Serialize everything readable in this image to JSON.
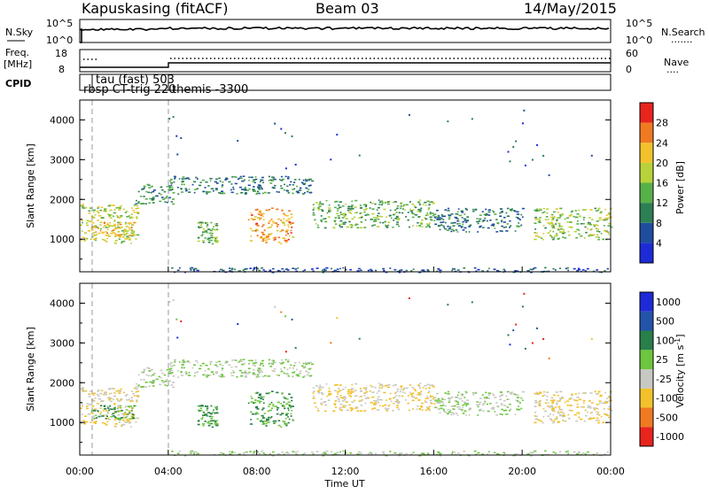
{
  "header": {
    "station": "Kapuskasing (fitACF)",
    "beam": "Beam 03",
    "date": "14/May/2015"
  },
  "noise_panel": {
    "left_label": "N.Sky",
    "left_ticks": [
      "10^5",
      "10^0"
    ],
    "right_ticks": [
      "10^5",
      "10^0"
    ],
    "right_label": "N.Search",
    "legend_marker": "......."
  },
  "freq_panel": {
    "left_label_line1": "Freq.",
    "left_label_line2": "[MHz]",
    "left_ticks": [
      "18",
      "8"
    ],
    "right_ticks": [
      "60",
      "0"
    ],
    "right_label": "Nave",
    "legend_marker": "...."
  },
  "cpid_panel": {
    "label": "CPID",
    "annotations": [
      "tau (fast) 503",
      "rbsp CT-trig 220",
      "themis -3300"
    ]
  },
  "x_axis": {
    "title": "Time UT",
    "ticks": [
      "00:00",
      "04:00",
      "08:00",
      "12:00",
      "16:00",
      "20:00",
      "00:00"
    ]
  },
  "power_panel": {
    "ylabel": "Slant Range [km]",
    "yticks": [
      "1000",
      "2000",
      "3000",
      "4000"
    ],
    "colorbar_label": "Power [dB]",
    "colorbar_ticks": [
      "4",
      "8",
      "12",
      "16",
      "20",
      "24",
      "28"
    ],
    "colors": [
      "#1d2bd6",
      "#1f4d9e",
      "#2e7f55",
      "#58b04a",
      "#b8d23a",
      "#f2c12d",
      "#f07a22",
      "#e8241d"
    ]
  },
  "velocity_panel": {
    "ylabel": "Slant Range [km]",
    "yticks": [
      "1000",
      "2000",
      "3000",
      "4000"
    ],
    "colorbar_label": "Velocity [m s",
    "colorbar_label_sup": "-1",
    "colorbar_label_end": "]",
    "colorbar_ticks": [
      "1000",
      "500",
      "100",
      "25",
      "-25",
      "-100",
      "-500",
      "-1000"
    ],
    "colors": [
      "#1d2bd6",
      "#2354a8",
      "#2a7f4a",
      "#6cc63e",
      "#c8c8c2",
      "#f2c12d",
      "#f07a22",
      "#e8241d"
    ]
  },
  "chart_data": {
    "type": "heatmap",
    "title": "Kapuskasing (fitACF) Beam 03 14/May/2015",
    "xlabel": "Time UT",
    "ylabel": "Slant Range [km]",
    "xlim_hours": [
      0,
      24
    ],
    "ylim_km": [
      180,
      4500
    ],
    "grid": false,
    "scatter_regions": [
      {
        "t0": 0.0,
        "t1": 2.6,
        "r0": 900,
        "r1": 1900,
        "power_db": 18,
        "velocity": -25
      },
      {
        "t0": 0.5,
        "t1": 2.5,
        "r0": 1100,
        "r1": 1450,
        "power_db": 22,
        "velocity": 100
      },
      {
        "t0": 2.5,
        "t1": 4.2,
        "r0": 1900,
        "r1": 2400,
        "power_db": 10,
        "velocity": 25
      },
      {
        "t0": 4.0,
        "t1": 10.5,
        "r0": 2150,
        "r1": 2600,
        "power_db": 9,
        "velocity": 25
      },
      {
        "t0": 5.3,
        "t1": 6.2,
        "r0": 900,
        "r1": 1450,
        "power_db": 14,
        "velocity": 100
      },
      {
        "t0": 7.6,
        "t1": 9.6,
        "r0": 900,
        "r1": 1800,
        "power_db": 24,
        "velocity": 100
      },
      {
        "t0": 10.5,
        "t1": 16.0,
        "r0": 1300,
        "r1": 2000,
        "power_db": 14,
        "velocity": -25
      },
      {
        "t0": 16.0,
        "t1": 20.0,
        "r0": 1200,
        "r1": 1800,
        "power_db": 9,
        "velocity": 25
      },
      {
        "t0": 20.5,
        "t1": 24.0,
        "r0": 1000,
        "r1": 1800,
        "power_db": 16,
        "velocity": -25
      },
      {
        "t0": 3.9,
        "t1": 24.0,
        "r0": 180,
        "r1": 300,
        "power_db": 6,
        "velocity": 25
      }
    ]
  }
}
